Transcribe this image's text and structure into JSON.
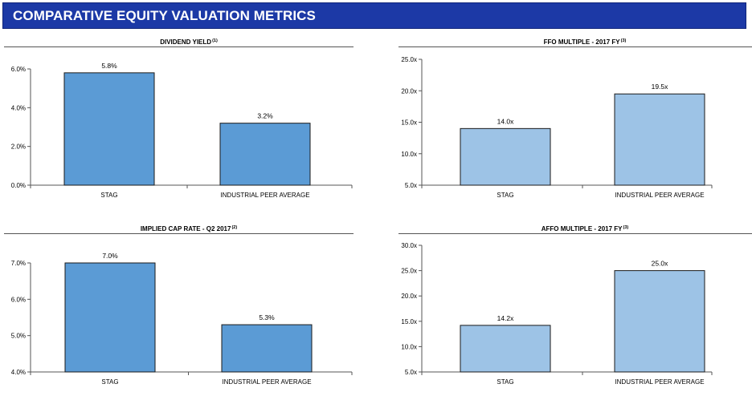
{
  "header": {
    "title": "COMPARATIVE EQUITY VALUATION METRICS"
  },
  "colors": {
    "banner": "#1c39a6",
    "bar_dark": "#5b9bd5",
    "bar_light": "#9dc3e6"
  },
  "chart_data": [
    {
      "type": "bar",
      "title": "DIVIDEND YIELD",
      "footnote": "(1)",
      "categories": [
        "STAG",
        "INDUSTRIAL PEER AVERAGE"
      ],
      "values": [
        5.8,
        3.2
      ],
      "value_labels": [
        "5.8%",
        "3.2%"
      ],
      "ylim": [
        0,
        6
      ],
      "yticks": [
        0,
        2,
        4,
        6
      ],
      "ytick_labels": [
        "0.0%",
        "2.0%",
        "4.0%",
        "6.0%"
      ],
      "bar_color": "#5b9bd5"
    },
    {
      "type": "bar",
      "title": "FFO MULTIPLE - 2017 FY",
      "footnote": "(3)",
      "categories": [
        "STAG",
        "INDUSTRIAL PEER AVERAGE"
      ],
      "values": [
        14.0,
        19.5
      ],
      "value_labels": [
        "14.0x",
        "19.5x"
      ],
      "ylim": [
        5,
        25
      ],
      "yticks": [
        5,
        10,
        15,
        20,
        25
      ],
      "ytick_labels": [
        "5.0x",
        "10.0x",
        "15.0x",
        "20.0x",
        "25.0x"
      ],
      "bar_color": "#9dc3e6"
    },
    {
      "type": "bar",
      "title": "IMPLIED CAP RATE - Q2 2017",
      "footnote": "(2)",
      "categories": [
        "STAG",
        "INDUSTRIAL PEER AVERAGE"
      ],
      "values": [
        7.0,
        5.3
      ],
      "value_labels": [
        "7.0%",
        "5.3%"
      ],
      "ylim": [
        4,
        7
      ],
      "yticks": [
        4,
        5,
        6,
        7
      ],
      "ytick_labels": [
        "4.0%",
        "5.0%",
        "6.0%",
        "7.0%"
      ],
      "bar_color": "#5b9bd5"
    },
    {
      "type": "bar",
      "title": "AFFO MULTIPLE - 2017 FY",
      "footnote": "(3)",
      "categories": [
        "STAG",
        "INDUSTRIAL PEER AVERAGE"
      ],
      "values": [
        14.2,
        25.0
      ],
      "value_labels": [
        "14.2x",
        "25.0x"
      ],
      "ylim": [
        5,
        30
      ],
      "yticks": [
        5,
        10,
        15,
        20,
        25,
        30
      ],
      "ytick_labels": [
        "5.0x",
        "10.0x",
        "15.0x",
        "20.0x",
        "25.0x",
        "30.0x"
      ],
      "bar_color": "#9dc3e6"
    }
  ]
}
